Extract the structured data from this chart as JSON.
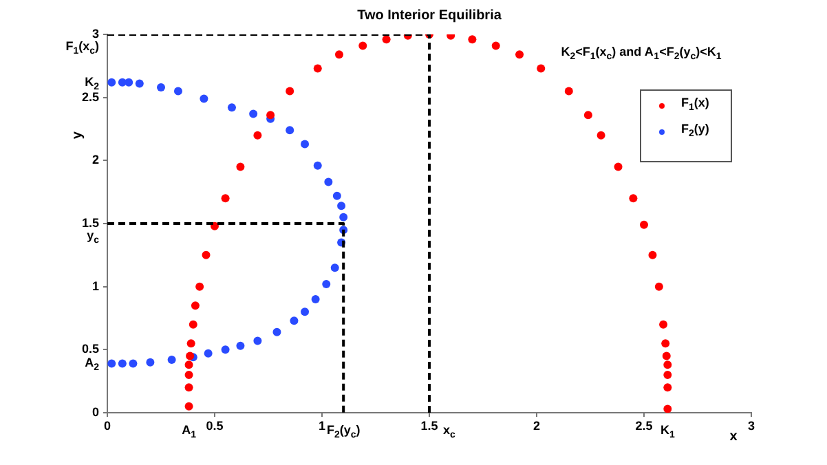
{
  "chart_data": {
    "type": "scatter",
    "title": "Two Interior Equilibria",
    "xlabel": "x",
    "ylabel": "y",
    "annotations": [
      "K$_{2}$<F$_{1}$(x$_{c}$) and A$_{1}$<F$_{2}$(y$_{c}$)<K$_{1}$",
      {
        "text": "A$_{1}$",
        "x": 0.38,
        "y": 0
      },
      {
        "text": "F$_{2}$(y$_{c}$)",
        "x": 1.1,
        "y": 0
      },
      {
        "text": "x$_{c}$",
        "x": 1.5,
        "y": 0
      },
      {
        "text": "K$_{1}$",
        "x": 2.61,
        "y": 0
      },
      {
        "text": "A$_{2}$",
        "x": 0,
        "y": 0.39
      },
      {
        "text": "y$_{c}$",
        "x": 0,
        "y": 1.5
      },
      {
        "text": "K$_{2}$",
        "x": 0,
        "y": 2.62
      },
      {
        "text": "F$_{1}$(x$_{c}$)",
        "x": 0,
        "y": 3
      }
    ],
    "xlim": [
      0,
      3
    ],
    "ylim": [
      0,
      3
    ],
    "xticks": [
      0,
      0.5,
      1,
      1.5,
      2,
      2.5,
      3
    ],
    "yticks": [
      0,
      0.5,
      1,
      1.5,
      2,
      2.5,
      3
    ],
    "grid": false,
    "legend": "top right",
    "marker": "circle",
    "series": [
      {
        "name": "F$_{1}$(x)",
        "color": "#ff0000",
        "x": [
          0.38,
          0.38,
          0.38,
          0.38,
          0.385,
          0.39,
          0.4,
          0.41,
          0.43,
          0.46,
          0.5,
          0.55,
          0.62,
          0.7,
          0.76,
          0.85,
          0.98,
          1.08,
          1.19,
          1.3,
          1.4,
          1.5,
          1.6,
          1.7,
          1.81,
          1.92,
          2.02,
          2.15,
          2.24,
          2.3,
          2.38,
          2.45,
          2.5,
          2.54,
          2.57,
          2.59,
          2.6,
          2.605,
          2.61,
          2.61,
          2.61,
          2.61
        ],
        "values": [
          0.05,
          0.2,
          0.3,
          0.38,
          0.45,
          0.55,
          0.7,
          0.85,
          1.0,
          1.25,
          1.48,
          1.7,
          1.95,
          2.2,
          2.36,
          2.55,
          2.73,
          2.84,
          2.91,
          2.96,
          2.99,
          3.0,
          2.99,
          2.96,
          2.91,
          2.84,
          2.73,
          2.55,
          2.36,
          2.2,
          1.95,
          1.7,
          1.49,
          1.25,
          1.0,
          0.7,
          0.55,
          0.45,
          0.38,
          0.3,
          0.2,
          0.03
        ]
      },
      {
        "name": "F$_{2}$(y)",
        "color": "#2a4bff",
        "x": [
          0.02,
          0.07,
          0.1,
          0.15,
          0.25,
          0.33,
          0.45,
          0.58,
          0.68,
          0.76,
          0.85,
          0.92,
          0.98,
          1.03,
          1.07,
          1.09,
          1.1,
          1.1,
          1.09,
          1.06,
          1.02,
          0.97,
          0.92,
          0.87,
          0.79,
          0.7,
          0.62,
          0.55,
          0.47,
          0.4,
          0.3,
          0.2,
          0.12,
          0.07,
          0.02
        ],
        "values": [
          2.62,
          2.62,
          2.62,
          2.61,
          2.58,
          2.55,
          2.49,
          2.42,
          2.37,
          2.33,
          2.24,
          2.13,
          1.96,
          1.83,
          1.72,
          1.64,
          1.55,
          1.45,
          1.35,
          1.15,
          1.02,
          0.9,
          0.8,
          0.73,
          0.64,
          0.57,
          0.53,
          0.5,
          0.47,
          0.44,
          0.42,
          0.4,
          0.39,
          0.39,
          0.39
        ]
      },
      {
        "type": "line",
        "color": "#000000",
        "line_style": "dashed",
        "marker": "none",
        "x": [
          0,
          1.5,
          1.5
        ],
        "values": [
          3,
          3,
          0
        ]
      },
      {
        "type": "line",
        "color": "#000000",
        "line_style": "dashed",
        "marker": "none",
        "x": [
          0,
          1.1,
          1.1
        ],
        "values": [
          1.5,
          1.5,
          0
        ]
      }
    ]
  }
}
